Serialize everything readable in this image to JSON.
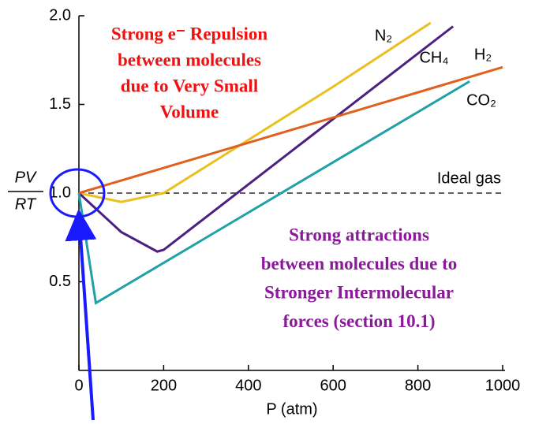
{
  "chart_data": {
    "type": "line",
    "x_label": "P (atm)",
    "y_label": {
      "numerator": "PV",
      "denominator": "RT"
    },
    "xlim": [
      0,
      1000
    ],
    "xticks": [
      0,
      200,
      400,
      600,
      800,
      1000
    ],
    "ylim": [
      0,
      2
    ],
    "yticks": [
      0.5,
      {
        "value": 1,
        "label": "1.0"
      },
      1.5,
      {
        "value": 2,
        "label": "2.0"
      }
    ],
    "reference_line": {
      "value": 1,
      "label": "Ideal gas"
    },
    "series": [
      {
        "name": "N₂",
        "color": "#e8c020",
        "x": [
          0,
          100,
          200,
          400,
          600,
          830
        ],
        "values": [
          1.0,
          0.95,
          1.0,
          1.3,
          1.6,
          1.96
        ]
      },
      {
        "name": "CH₄",
        "color": "#4b2080",
        "x": [
          0,
          100,
          185,
          200,
          883
        ],
        "values": [
          1.0,
          0.78,
          0.67,
          0.68,
          1.94
        ]
      },
      {
        "name": "H₂",
        "color": "#e06020",
        "x": [
          0,
          1000
        ],
        "values": [
          1.0,
          1.71
        ]
      },
      {
        "name": "CO₂",
        "color": "#20a0a8",
        "x": [
          0,
          40,
          922
        ],
        "values": [
          1.0,
          0.38,
          1.63
        ]
      }
    ],
    "annotations": [
      {
        "color": "#ee1111",
        "lines": [
          "Strong e⁻ Repulsion",
          "between molecules",
          "due to Very Small",
          "Volume"
        ]
      },
      {
        "color": "#8a1a9a",
        "lines": [
          "Strong attractions",
          "between molecules due to",
          "Stronger Intermolecular",
          "forces (section 10.1)"
        ]
      }
    ]
  }
}
